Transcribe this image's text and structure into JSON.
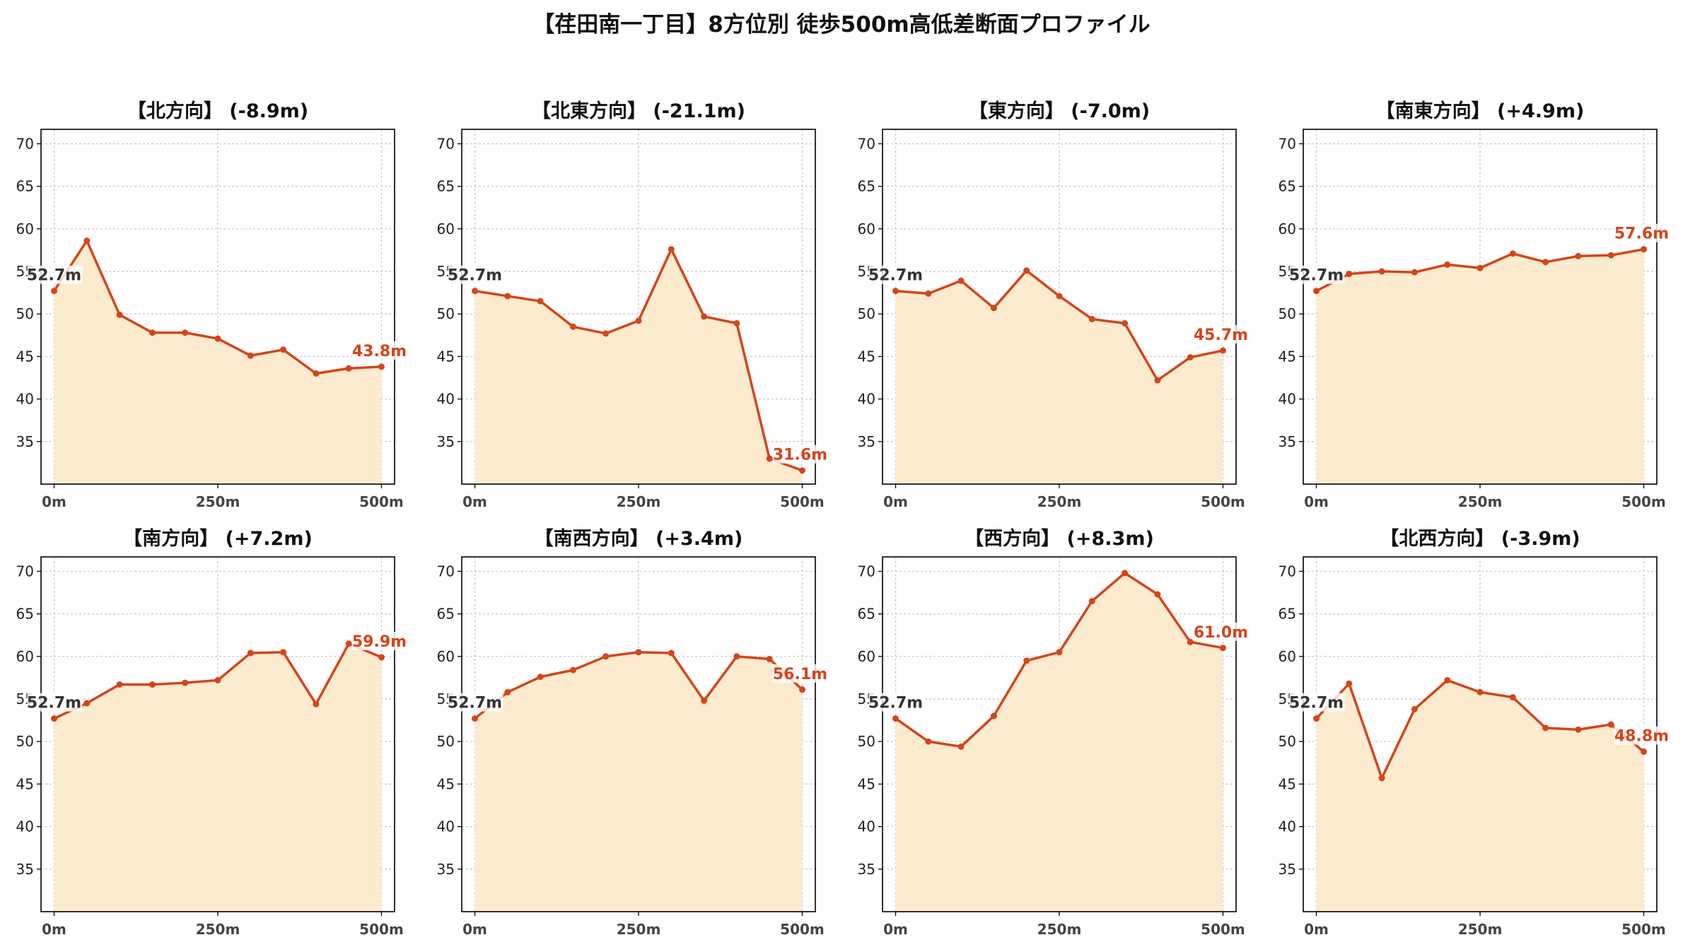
{
  "page": {
    "title": "【荏田南一丁目】8方位別 徒歩500m高低差断面プロファイル"
  },
  "colors": {
    "line": "#d4451a",
    "fill": "#fdebd0",
    "grid": "#c8c8c8",
    "axis": "#000000",
    "start_label": "#333333",
    "end_label": "#d4451a"
  },
  "chart_data": [
    {
      "type": "area",
      "title": "【北方向】 (-8.9m)",
      "x": [
        0,
        50,
        100,
        150,
        200,
        250,
        300,
        350,
        400,
        450,
        500
      ],
      "values": [
        52.7,
        58.6,
        49.9,
        47.8,
        47.8,
        47.1,
        45.1,
        45.8,
        43.0,
        43.6,
        43.8
      ],
      "start_label": "52.7m",
      "end_label": "43.8m",
      "xticks": [
        0,
        250,
        500
      ],
      "xtick_labels": [
        "0m",
        "250m",
        "500m"
      ],
      "yticks": [
        35,
        40,
        45,
        50,
        55,
        60,
        65,
        70
      ],
      "ytick_labels": [
        "35",
        "40",
        "45",
        "50",
        "55",
        "60",
        "65",
        "70"
      ],
      "xlim": [
        -20,
        520
      ],
      "ylim": [
        30,
        71.7
      ],
      "grid": true
    },
    {
      "type": "area",
      "title": "【北東方向】 (-21.1m)",
      "x": [
        0,
        50,
        100,
        150,
        200,
        250,
        300,
        350,
        400,
        450,
        500
      ],
      "values": [
        52.7,
        52.1,
        51.5,
        48.5,
        47.7,
        49.2,
        57.6,
        49.7,
        48.9,
        33.0,
        31.6
      ],
      "start_label": "52.7m",
      "end_label": "31.6m",
      "xticks": [
        0,
        250,
        500
      ],
      "xtick_labels": [
        "0m",
        "250m",
        "500m"
      ],
      "yticks": [
        35,
        40,
        45,
        50,
        55,
        60,
        65,
        70
      ],
      "ytick_labels": [
        "35",
        "40",
        "45",
        "50",
        "55",
        "60",
        "65",
        "70"
      ],
      "xlim": [
        -20,
        520
      ],
      "ylim": [
        30,
        71.7
      ],
      "grid": true
    },
    {
      "type": "area",
      "title": "【東方向】 (-7.0m)",
      "x": [
        0,
        50,
        100,
        150,
        200,
        250,
        300,
        350,
        400,
        450,
        500
      ],
      "values": [
        52.7,
        52.4,
        53.9,
        50.7,
        55.1,
        52.1,
        49.4,
        48.9,
        42.2,
        44.9,
        45.7
      ],
      "start_label": "52.7m",
      "end_label": "45.7m",
      "xticks": [
        0,
        250,
        500
      ],
      "xtick_labels": [
        "0m",
        "250m",
        "500m"
      ],
      "yticks": [
        35,
        40,
        45,
        50,
        55,
        60,
        65,
        70
      ],
      "ytick_labels": [
        "35",
        "40",
        "45",
        "50",
        "55",
        "60",
        "65",
        "70"
      ],
      "xlim": [
        -20,
        520
      ],
      "ylim": [
        30,
        71.7
      ],
      "grid": true
    },
    {
      "type": "area",
      "title": "【南東方向】 (+4.9m)",
      "x": [
        0,
        50,
        100,
        150,
        200,
        250,
        300,
        350,
        400,
        450,
        500
      ],
      "values": [
        52.7,
        54.7,
        55.0,
        54.9,
        55.8,
        55.4,
        57.1,
        56.1,
        56.8,
        56.9,
        57.6
      ],
      "start_label": "52.7m",
      "end_label": "57.6m",
      "xticks": [
        0,
        250,
        500
      ],
      "xtick_labels": [
        "0m",
        "250m",
        "500m"
      ],
      "yticks": [
        35,
        40,
        45,
        50,
        55,
        60,
        65,
        70
      ],
      "ytick_labels": [
        "35",
        "40",
        "45",
        "50",
        "55",
        "60",
        "65",
        "70"
      ],
      "xlim": [
        -20,
        520
      ],
      "ylim": [
        30,
        71.7
      ],
      "grid": true
    },
    {
      "type": "area",
      "title": "【南方向】 (+7.2m)",
      "x": [
        0,
        50,
        100,
        150,
        200,
        250,
        300,
        350,
        400,
        450,
        500
      ],
      "values": [
        52.7,
        54.5,
        56.7,
        56.7,
        56.9,
        57.2,
        60.4,
        60.5,
        54.4,
        61.5,
        59.9
      ],
      "start_label": "52.7m",
      "end_label": "59.9m",
      "xticks": [
        0,
        250,
        500
      ],
      "xtick_labels": [
        "0m",
        "250m",
        "500m"
      ],
      "yticks": [
        35,
        40,
        45,
        50,
        55,
        60,
        65,
        70
      ],
      "ytick_labels": [
        "35",
        "40",
        "45",
        "50",
        "55",
        "60",
        "65",
        "70"
      ],
      "xlim": [
        -20,
        520
      ],
      "ylim": [
        30,
        71.7
      ],
      "grid": true
    },
    {
      "type": "area",
      "title": "【南西方向】 (+3.4m)",
      "x": [
        0,
        50,
        100,
        150,
        200,
        250,
        300,
        350,
        400,
        450,
        500
      ],
      "values": [
        52.7,
        55.8,
        57.6,
        58.4,
        60.0,
        60.5,
        60.4,
        54.8,
        60.0,
        59.7,
        56.1
      ],
      "start_label": "52.7m",
      "end_label": "56.1m",
      "xticks": [
        0,
        250,
        500
      ],
      "xtick_labels": [
        "0m",
        "250m",
        "500m"
      ],
      "yticks": [
        35,
        40,
        45,
        50,
        55,
        60,
        65,
        70
      ],
      "ytick_labels": [
        "35",
        "40",
        "45",
        "50",
        "55",
        "60",
        "65",
        "70"
      ],
      "xlim": [
        -20,
        520
      ],
      "ylim": [
        30,
        71.7
      ],
      "grid": true
    },
    {
      "type": "area",
      "title": "【西方向】 (+8.3m)",
      "x": [
        0,
        50,
        100,
        150,
        200,
        250,
        300,
        350,
        400,
        450,
        500
      ],
      "values": [
        52.7,
        50.0,
        49.4,
        53.0,
        59.5,
        60.5,
        66.5,
        69.8,
        67.3,
        61.7,
        61.0
      ],
      "start_label": "52.7m",
      "end_label": "61.0m",
      "xticks": [
        0,
        250,
        500
      ],
      "xtick_labels": [
        "0m",
        "250m",
        "500m"
      ],
      "yticks": [
        35,
        40,
        45,
        50,
        55,
        60,
        65,
        70
      ],
      "ytick_labels": [
        "35",
        "40",
        "45",
        "50",
        "55",
        "60",
        "65",
        "70"
      ],
      "xlim": [
        -20,
        520
      ],
      "ylim": [
        30,
        71.7
      ],
      "grid": true
    },
    {
      "type": "area",
      "title": "【北西方向】 (-3.9m)",
      "x": [
        0,
        50,
        100,
        150,
        200,
        250,
        300,
        350,
        400,
        450,
        500
      ],
      "values": [
        52.7,
        56.8,
        45.7,
        53.8,
        57.2,
        55.8,
        55.2,
        51.6,
        51.4,
        52.0,
        48.8
      ],
      "start_label": "52.7m",
      "end_label": "48.8m",
      "xticks": [
        0,
        250,
        500
      ],
      "xtick_labels": [
        "0m",
        "250m",
        "500m"
      ],
      "yticks": [
        35,
        40,
        45,
        50,
        55,
        60,
        65,
        70
      ],
      "ytick_labels": [
        "35",
        "40",
        "45",
        "50",
        "55",
        "60",
        "65",
        "70"
      ],
      "xlim": [
        -20,
        520
      ],
      "ylim": [
        30,
        71.7
      ],
      "grid": true
    }
  ]
}
